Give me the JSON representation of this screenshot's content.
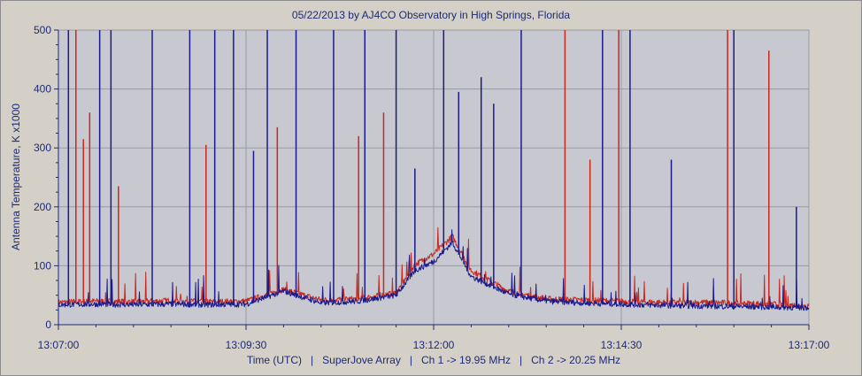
{
  "chart_data": {
    "type": "line",
    "title": "05/22/2013  by  AJ4CO Observatory  in  High Springs, Florida",
    "xlabel": "Time (UTC)   |   SuperJove Array   |   Ch 1 -> 19.95 MHz   |   Ch 2 -> 20.25 MHz",
    "ylabel": "Antenna Temperature, K x1000",
    "xlim": [
      "13:07:00",
      "13:17:00"
    ],
    "ylim": [
      0,
      500
    ],
    "x_ticks": [
      "13:07:00",
      "13:09:30",
      "13:12:00",
      "13:14:30",
      "13:17:00"
    ],
    "y_ticks": [
      0,
      100,
      200,
      300,
      400,
      500
    ],
    "grid": true,
    "background": "#c8c8d0",
    "series": [
      {
        "name": "Ch 1 -> 19.95 MHz",
        "color": "#c8281e",
        "x": [
          "13:07:00",
          "13:07:30",
          "13:08:00",
          "13:08:30",
          "13:09:00",
          "13:09:30",
          "13:10:00",
          "13:10:30",
          "13:11:00",
          "13:11:30",
          "13:11:45",
          "13:12:00",
          "13:12:15",
          "13:12:30",
          "13:13:00",
          "13:13:30",
          "13:14:00",
          "13:14:30",
          "13:15:00",
          "13:15:30",
          "13:16:00",
          "13:16:30",
          "13:17:00"
        ],
        "values": [
          36,
          38,
          37,
          39,
          37,
          38,
          58,
          40,
          42,
          52,
          100,
          118,
          148,
          90,
          55,
          42,
          40,
          38,
          36,
          36,
          35,
          33,
          30
        ]
      },
      {
        "name": "Ch 2 -> 20.25 MHz",
        "color": "#1a1a8c",
        "x": [
          "13:07:00",
          "13:07:30",
          "13:08:00",
          "13:08:30",
          "13:09:00",
          "13:09:30",
          "13:10:00",
          "13:10:30",
          "13:11:00",
          "13:11:30",
          "13:11:45",
          "13:12:00",
          "13:12:15",
          "13:12:30",
          "13:13:00",
          "13:13:30",
          "13:14:00",
          "13:14:30",
          "13:15:00",
          "13:15:30",
          "13:16:00",
          "13:16:30",
          "13:17:00"
        ],
        "values": [
          32,
          33,
          32,
          33,
          32,
          33,
          55,
          35,
          38,
          48,
          90,
          105,
          138,
          80,
          50,
          38,
          35,
          33,
          31,
          30,
          29,
          28,
          27
        ]
      }
    ],
    "spikes": [
      {
        "series": "Ch 2 -> 20.25 MHz",
        "time": "13:07:08",
        "value": 500
      },
      {
        "series": "Ch 2 -> 20.25 MHz",
        "time": "13:07:33",
        "value": 500
      },
      {
        "series": "Ch 1 -> 19.95 MHz",
        "time": "13:07:14",
        "value": 500
      },
      {
        "series": "Ch 1 -> 19.95 MHz",
        "time": "13:07:20",
        "value": 315
      },
      {
        "series": "Ch 1 -> 19.95 MHz",
        "time": "13:07:25",
        "value": 360
      },
      {
        "series": "Ch 2 -> 20.25 MHz",
        "time": "13:07:42",
        "value": 500
      },
      {
        "series": "Ch 1 -> 19.95 MHz",
        "time": "13:07:48",
        "value": 235
      },
      {
        "series": "Ch 2 -> 20.25 MHz",
        "time": "13:08:15",
        "value": 500
      },
      {
        "series": "Ch 2 -> 20.25 MHz",
        "time": "13:08:45",
        "value": 500
      },
      {
        "series": "Ch 2 -> 20.25 MHz",
        "time": "13:09:05",
        "value": 500
      },
      {
        "series": "Ch 1 -> 19.95 MHz",
        "time": "13:08:58",
        "value": 305
      },
      {
        "series": "Ch 2 -> 20.25 MHz",
        "time": "13:09:20",
        "value": 500
      },
      {
        "series": "Ch 2 -> 20.25 MHz",
        "time": "13:09:47",
        "value": 500
      },
      {
        "series": "Ch 1 -> 19.95 MHz",
        "time": "13:09:55",
        "value": 335
      },
      {
        "series": "Ch 2 -> 20.25 MHz",
        "time": "13:09:36",
        "value": 295
      },
      {
        "series": "Ch 2 -> 20.25 MHz",
        "time": "13:10:10",
        "value": 500
      },
      {
        "series": "Ch 2 -> 20.25 MHz",
        "time": "13:10:40",
        "value": 500
      },
      {
        "series": "Ch 1 -> 19.95 MHz",
        "time": "13:11:00",
        "value": 320
      },
      {
        "series": "Ch 2 -> 20.25 MHz",
        "time": "13:11:05",
        "value": 500
      },
      {
        "series": "Ch 1 -> 19.95 MHz",
        "time": "13:11:20",
        "value": 360
      },
      {
        "series": "Ch 2 -> 20.25 MHz",
        "time": "13:11:30",
        "value": 500
      },
      {
        "series": "Ch 2 -> 20.25 MHz",
        "time": "13:11:45",
        "value": 265
      },
      {
        "series": "Ch 2 -> 20.25 MHz",
        "time": "13:12:08",
        "value": 500
      },
      {
        "series": "Ch 2 -> 20.25 MHz",
        "time": "13:12:20",
        "value": 395
      },
      {
        "series": "Ch 2 -> 20.25 MHz",
        "time": "13:12:38",
        "value": 420
      },
      {
        "series": "Ch 2 -> 20.25 MHz",
        "time": "13:12:48",
        "value": 375
      },
      {
        "series": "Ch 2 -> 20.25 MHz",
        "time": "13:13:10",
        "value": 500
      },
      {
        "series": "Ch 1 -> 19.95 MHz",
        "time": "13:13:45",
        "value": 500
      },
      {
        "series": "Ch 1 -> 19.95 MHz",
        "time": "13:14:05",
        "value": 280
      },
      {
        "series": "Ch 2 -> 20.25 MHz",
        "time": "13:14:15",
        "value": 500
      },
      {
        "series": "Ch 1 -> 19.95 MHz",
        "time": "13:14:28",
        "value": 500
      },
      {
        "series": "Ch 2 -> 20.25 MHz",
        "time": "13:14:37",
        "value": 500
      },
      {
        "series": "Ch 2 -> 20.25 MHz",
        "time": "13:15:10",
        "value": 280
      },
      {
        "series": "Ch 1 -> 19.95 MHz",
        "time": "13:15:55",
        "value": 500
      },
      {
        "series": "Ch 2 -> 20.25 MHz",
        "time": "13:16:00",
        "value": 500
      },
      {
        "series": "Ch 1 -> 19.95 MHz",
        "time": "13:16:28",
        "value": 465
      },
      {
        "series": "Ch 2 -> 20.25 MHz",
        "time": "13:16:50",
        "value": 200
      }
    ]
  }
}
